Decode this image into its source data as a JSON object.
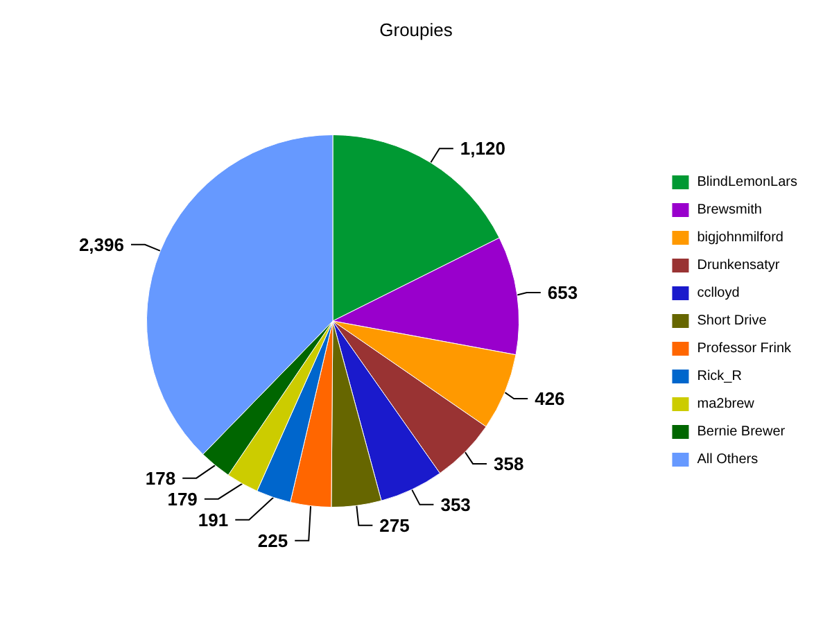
{
  "chart_data": {
    "type": "pie",
    "title": "Groupies",
    "categories": [
      "BlindLemonLars",
      "Brewsmith",
      "bigjohnmilford",
      "Drunkensatyr",
      "cclloyd",
      "Short Drive",
      "Professor Frink",
      "Rick_R",
      "ma2brew",
      "Bernie Brewer",
      "All Others"
    ],
    "values": [
      1120,
      653,
      426,
      358,
      353,
      275,
      225,
      191,
      179,
      178,
      2396
    ],
    "value_labels": [
      "1,120",
      "653",
      "426",
      "358",
      "353",
      "275",
      "225",
      "191",
      "179",
      "178",
      "2,396"
    ],
    "colors": [
      "#009933",
      "#9900cc",
      "#ff9900",
      "#993333",
      "#1a1acc",
      "#666600",
      "#ff6600",
      "#0066cc",
      "#cccc00",
      "#006600",
      "#6699ff"
    ],
    "legend": "right"
  }
}
